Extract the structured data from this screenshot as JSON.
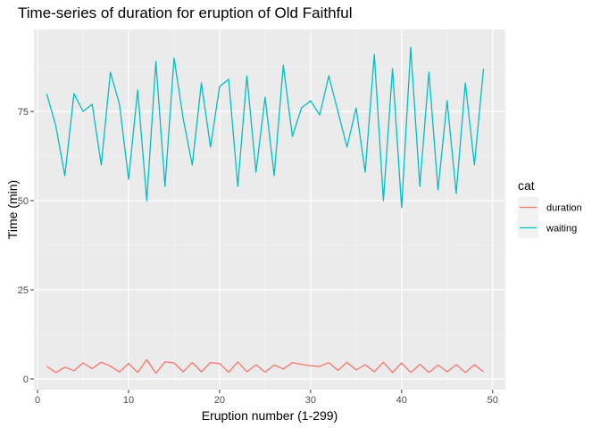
{
  "chart_data": {
    "type": "line",
    "title": "Time-series of duration for eruption of Old Faithful",
    "xlabel": "Eruption number (1-299)",
    "ylabel": "Time  (min)",
    "xlim": [
      -0.4,
      51.4
    ],
    "ylim": [
      -3,
      98
    ],
    "xticks": [
      0,
      10,
      20,
      30,
      40,
      50
    ],
    "yticks": [
      0,
      25,
      50,
      75
    ],
    "grid": true,
    "legend": {
      "title": "cat",
      "position": "right"
    },
    "x": [
      1,
      2,
      3,
      4,
      5,
      6,
      7,
      8,
      9,
      10,
      11,
      12,
      13,
      14,
      15,
      16,
      17,
      18,
      19,
      20,
      21,
      22,
      23,
      24,
      25,
      26,
      27,
      28,
      29,
      30,
      31,
      32,
      33,
      34,
      35,
      36,
      37,
      38,
      39,
      40,
      41,
      42,
      43,
      44,
      45,
      46,
      47,
      48,
      49
    ],
    "series": [
      {
        "name": "duration",
        "color": "#F8766D",
        "values": [
          3.6,
          1.8,
          3.3,
          2.3,
          4.5,
          2.9,
          4.7,
          3.6,
          1.95,
          4.35,
          1.8,
          5.4,
          1.6,
          4.8,
          4.5,
          2.0,
          4.6,
          2.0,
          4.6,
          4.3,
          1.9,
          4.8,
          2.0,
          4.0,
          1.9,
          3.9,
          2.8,
          4.6,
          4.1,
          3.7,
          3.5,
          4.6,
          2.4,
          4.7,
          2.5,
          4.0,
          2.0,
          4.7,
          1.8,
          4.5,
          1.8,
          4.1,
          1.8,
          3.9,
          2.0,
          4.0,
          1.8,
          4.0,
          2.0
        ]
      },
      {
        "name": "waiting",
        "color": "#00BFC4",
        "values": [
          80,
          71,
          57,
          80,
          75,
          77,
          60,
          86,
          77,
          56,
          81,
          50,
          89,
          54,
          90,
          73,
          60,
          83,
          65,
          82,
          84,
          54,
          85,
          58,
          79,
          57,
          88,
          68,
          76,
          78,
          74,
          85,
          75,
          65,
          76,
          58,
          91,
          50,
          87,
          48,
          93,
          54,
          86,
          53,
          78,
          52,
          83,
          60,
          87
        ]
      }
    ]
  }
}
